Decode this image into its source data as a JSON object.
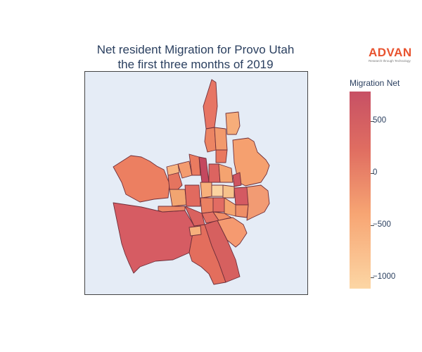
{
  "title_lines": [
    "Net resident Migration for Provo Utah",
    "the first three months of 2019"
  ],
  "logo": {
    "word": "ADVAN",
    "tagline": "Research through Technology"
  },
  "colorbar": {
    "title": "Migration Net",
    "ticks": [
      "500",
      "0",
      "−500",
      "−1000"
    ],
    "colorscale": [
      "#c75064",
      "#e06e61",
      "#f7a573",
      "#fcd6a4"
    ]
  },
  "map": {
    "background": "#e5ecf6",
    "border_color": "#6e2f3a"
  }
}
